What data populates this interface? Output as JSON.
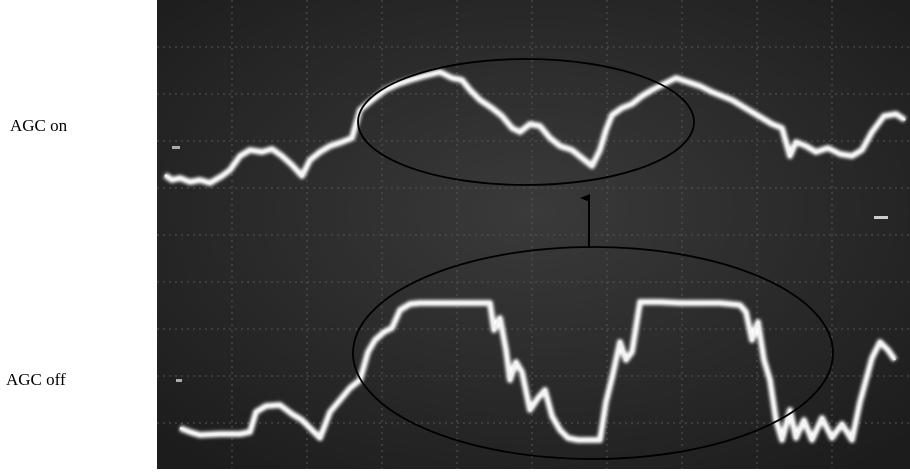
{
  "labels": {
    "top": "AGC on",
    "bottom": "AGC off"
  }
}
